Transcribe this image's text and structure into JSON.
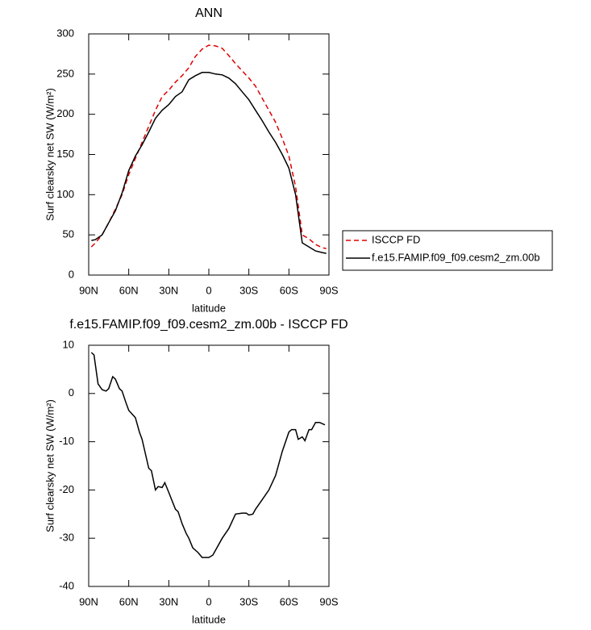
{
  "chart_data": [
    {
      "type": "line",
      "title": "ANN",
      "xlabel": "latitude",
      "ylabel": "Surf clearsky net SW (W/m²)",
      "x": [
        88,
        85,
        80,
        75,
        70,
        65,
        60,
        55,
        50,
        45,
        40,
        35,
        30,
        25,
        20,
        15,
        10,
        5,
        0,
        -5,
        -10,
        -15,
        -20,
        -25,
        -30,
        -35,
        -40,
        -45,
        -50,
        -55,
        -60,
        -65,
        -70,
        -75,
        -80,
        -85,
        -88
      ],
      "series": [
        {
          "name": "ISCCP FD",
          "color": "#e00000",
          "linestyle": "dashed",
          "values": [
            35,
            40,
            50,
            65,
            82,
            100,
            125,
            145,
            165,
            185,
            205,
            222,
            230,
            240,
            248,
            258,
            272,
            281,
            286,
            285,
            282,
            273,
            263,
            254,
            245,
            235,
            220,
            205,
            190,
            170,
            148,
            110,
            50,
            45,
            38,
            34,
            33
          ]
        },
        {
          "name": "f.e15.FAMIP.f09_f09.cesm2_zm.00b",
          "color": "#000000",
          "linestyle": "solid",
          "values": [
            43,
            44,
            50,
            65,
            80,
            102,
            130,
            148,
            162,
            178,
            195,
            205,
            212,
            222,
            228,
            243,
            248,
            252,
            252,
            250,
            249,
            245,
            238,
            228,
            218,
            205,
            192,
            178,
            165,
            150,
            133,
            100,
            40,
            35,
            30,
            28,
            27
          ]
        }
      ],
      "xlim": [
        90,
        -90
      ],
      "xticks": [
        {
          "value": 90,
          "label": "90N"
        },
        {
          "value": 60,
          "label": "60N"
        },
        {
          "value": 30,
          "label": "30N"
        },
        0,
        {
          "value": -30,
          "label": "30S"
        },
        {
          "value": -60,
          "label": "60S"
        },
        {
          "value": -90,
          "label": "90S"
        }
      ],
      "ylim": [
        0,
        300
      ],
      "yticks": [
        0,
        50,
        100,
        150,
        200,
        250,
        300
      ],
      "legend": "right"
    },
    {
      "type": "line",
      "title": "f.e15.FAMIP.f09_f09.cesm2_zm.00b - ISCCP FD",
      "xlabel": "latitude",
      "ylabel": "Surf clearsky net SW (W/m²)",
      "x": [
        88,
        86,
        83,
        80,
        77,
        75,
        72,
        70,
        67,
        65,
        62,
        60,
        55,
        52,
        50,
        45,
        43,
        40,
        38,
        35,
        33,
        30,
        25,
        23,
        20,
        17,
        15,
        12,
        8,
        5,
        0,
        -3,
        -5,
        -10,
        -15,
        -20,
        -25,
        -28,
        -30,
        -33,
        -35,
        -40,
        -45,
        -50,
        -55,
        -60,
        -62,
        -65,
        -67,
        -70,
        -72,
        -75,
        -77,
        -80,
        -83,
        -87
      ],
      "values": [
        8.5,
        8,
        2,
        0.8,
        0.5,
        1,
        3.5,
        3,
        1,
        0.5,
        -2,
        -3.5,
        -5,
        -8,
        -9.5,
        -15.5,
        -16,
        -20,
        -19.3,
        -19.5,
        -18.5,
        -20.5,
        -24,
        -24.5,
        -27,
        -29,
        -30,
        -32,
        -33,
        -34,
        -34,
        -33.5,
        -32.5,
        -30,
        -28,
        -25,
        -24.8,
        -24.8,
        -25.2,
        -25,
        -24,
        -22,
        -20,
        -17,
        -12,
        -8,
        -7.5,
        -7.5,
        -9.5,
        -9,
        -9.8,
        -7.5,
        -7.5,
        -6,
        -6,
        -6.5
      ],
      "color": "#000000",
      "linestyle": "solid",
      "xlim": [
        90,
        -90
      ],
      "xticks": [
        {
          "value": 90,
          "label": "90N"
        },
        {
          "value": 60,
          "label": "60N"
        },
        {
          "value": 30,
          "label": "30N"
        },
        0,
        {
          "value": -30,
          "label": "30S"
        },
        {
          "value": -60,
          "label": "60S"
        },
        {
          "value": -90,
          "label": "90S"
        }
      ],
      "ylim": [
        -40,
        10
      ],
      "yticks": [
        -40,
        -30,
        -20,
        -10,
        0,
        10
      ]
    }
  ]
}
